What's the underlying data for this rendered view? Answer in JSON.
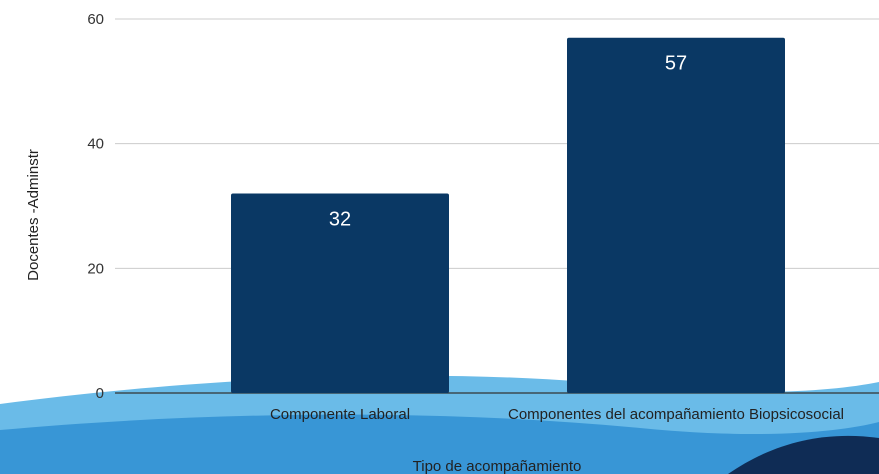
{
  "colors": {
    "bar": "#0a3864",
    "grid": "#cccccc",
    "baseline": "#333333",
    "wave_light": "#5ab4e6",
    "wave_mid": "#2f8fd2",
    "wave_dark": "#0f2c55"
  },
  "chart_data": {
    "type": "bar",
    "title": "",
    "xlabel": "Tipo de acompañamiento",
    "ylabel": "Docentes -Adminstr",
    "ylim": [
      0,
      60
    ],
    "yticks": [
      0,
      20,
      40,
      60
    ],
    "grid": true,
    "categories": [
      "Componente Laboral",
      "Componentes del acompañamiento Biopsicosocial"
    ],
    "series": [
      {
        "values": [
          32,
          57
        ]
      }
    ],
    "data_labels": [
      "32",
      "57"
    ]
  }
}
